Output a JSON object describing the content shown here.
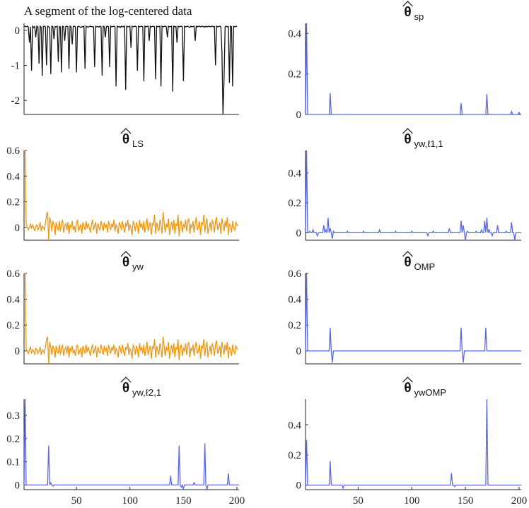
{
  "chart_data": [
    {
      "id": "data",
      "type": "line",
      "title_text": "A segment of the log-centered data",
      "color": "#111111",
      "xlim": [
        1,
        202
      ],
      "ylim": [
        -2.4,
        0.2
      ],
      "yticks": [
        0,
        -1,
        -2
      ],
      "ytick_labels": [
        "0",
        "-1",
        "-2"
      ],
      "xticks": [],
      "x_start": 1,
      "values": [
        0.12,
        0.12,
        0.1,
        0.12,
        0.1,
        -0.35,
        0.1,
        -1.15,
        0.12,
        0.08,
        0.11,
        -0.2,
        0.12,
        0.1,
        -0.95,
        0.12,
        0.09,
        -1.3,
        0.11,
        0.12,
        0.1,
        -1.0,
        0.12,
        0.1,
        0.08,
        -1.25,
        0.12,
        0.1,
        -0.25,
        0.11,
        0.1,
        0.12,
        -0.9,
        0.11,
        0.1,
        -1.2,
        0.12,
        0.1,
        -0.3,
        0.11,
        0.12,
        0.1,
        -1.1,
        0.12,
        0.1,
        -0.4,
        0.11,
        0.12,
        0.1,
        -1.2,
        0.1,
        0.12,
        0.1,
        0.08,
        0.11,
        0.1,
        0.12,
        -1.1,
        0.12,
        0.1,
        0.09,
        0.11,
        0.12,
        0.1,
        0.11,
        0.1,
        -1.05,
        0.12,
        0.1,
        0.11,
        0.09,
        0.12,
        0.1,
        -1.3,
        0.12,
        0.1,
        -0.2,
        0.11,
        0.12,
        0.1,
        -1.05,
        0.12,
        0.1,
        0.11,
        0.12,
        0.1,
        -1.6,
        0.12,
        0.1,
        0.11,
        0.08,
        0.12,
        0.1,
        0.11,
        0.12,
        -1.7,
        0.12,
        0.1,
        0.11,
        0.12,
        -0.5,
        0.12,
        0.1,
        0.11,
        0.12,
        0.1,
        -1.15,
        0.12,
        0.1,
        0.11,
        0.12,
        0.1,
        -1.45,
        0.12,
        0.1,
        0.11,
        0.12,
        -0.3,
        0.12,
        0.1,
        0.11,
        0.12,
        0.1,
        -1.4,
        0.12,
        0.1,
        0.11,
        0.12,
        -1.6,
        0.12,
        0.1,
        0.11,
        0.12,
        0.1,
        -0.2,
        0.12,
        0.1,
        0.11,
        0.12,
        -1.75,
        0.12,
        0.1,
        0.11,
        -0.35,
        0.12,
        0.1,
        0.11,
        0.12,
        0.1,
        -1.45,
        0.12,
        0.1,
        0.11,
        0.12,
        0.1,
        0.08,
        0.12,
        0.1,
        0.11,
        0.12,
        -0.3,
        0.12,
        0.1,
        0.11,
        0.12,
        0.1,
        0.11,
        0.12,
        0.1,
        0.09,
        0.12,
        0.1,
        0.11,
        0.12,
        0.1,
        0.11,
        0.12,
        0.1,
        0.11,
        -1.0,
        0.12,
        0.1,
        0.11,
        0.12,
        0.1,
        -0.6,
        -2.4,
        -1.4,
        0.1,
        0.12,
        0.1,
        0.11,
        -1.5,
        0.12,
        0.1,
        -1.6,
        0.12,
        0.1,
        0.11,
        0.12
      ]
    },
    {
      "id": "sp",
      "type": "line",
      "title_main": "θ",
      "title_sub": "sp",
      "color": "#5b67e0",
      "xlim": [
        1,
        202
      ],
      "ylim": [
        0,
        0.45
      ],
      "yticks": [
        0,
        0.2,
        0.4
      ],
      "ytick_labels": [
        "0",
        "0.2",
        "0.4"
      ],
      "xticks": [],
      "sparse": [
        [
          2,
          0.45
        ],
        [
          24,
          0.105
        ],
        [
          146,
          0.055
        ],
        [
          170,
          0.1
        ],
        [
          193,
          0.015
        ],
        [
          200,
          0.01
        ]
      ]
    },
    {
      "id": "ls",
      "type": "line",
      "title_main": "θ",
      "title_sub": "LS",
      "color": "#f0960f",
      "xlim": [
        1,
        202
      ],
      "ylim": [
        -0.1,
        0.6
      ],
      "yticks": [
        0,
        0.2,
        0.4,
        0.6
      ],
      "ytick_labels": [
        "0",
        "0.2",
        "0.4",
        "0.6"
      ],
      "xticks": [],
      "x_start": 1,
      "values": [
        0.6,
        0.6,
        0.02,
        0.01,
        -0.02,
        0.0,
        0.03,
        -0.01,
        0.02,
        0.0,
        -0.03,
        0.01,
        0.02,
        -0.02,
        0.0,
        0.04,
        -0.03,
        0.01,
        0.0,
        -0.02,
        0.03,
        0.1,
        0.12,
        -0.1,
        0.08,
        0.04,
        -0.03,
        0.05,
        0.02,
        -0.06,
        0.04,
        0.0,
        -0.02,
        0.05,
        -0.03,
        0.02,
        0.06,
        -0.04,
        0.01,
        0.03,
        -0.02,
        0.04,
        -0.05,
        0.02,
        0.0,
        0.05,
        -0.02,
        0.01,
        -0.04,
        0.03,
        0.06,
        -0.03,
        0.0,
        0.02,
        -0.05,
        0.04,
        0.01,
        -0.02,
        0.05,
        -0.01,
        0.03,
        0.0,
        -0.04,
        0.02,
        0.06,
        -0.02,
        0.01,
        0.04,
        -0.05,
        0.03,
        0.0,
        -0.02,
        0.05,
        0.01,
        -0.03,
        0.04,
        0.0,
        0.02,
        -0.04,
        0.05,
        0.01,
        -0.02,
        0.03,
        0.0,
        0.06,
        -0.03,
        0.02,
        0.0,
        -0.05,
        0.04,
        0.02,
        -0.02,
        0.05,
        0.0,
        -0.04,
        0.03,
        0.01,
        0.06,
        -0.03,
        0.02,
        0.0,
        -0.06,
        0.05,
        0.02,
        -0.03,
        0.04,
        0.01,
        -0.05,
        0.06,
        0.0,
        0.03,
        -0.02,
        0.05,
        -0.04,
        0.02,
        0.07,
        -0.03,
        0.01,
        0.04,
        -0.06,
        0.03,
        0.02,
        0.1,
        -0.05,
        0.04,
        0.0,
        -0.03,
        0.06,
        0.02,
        -0.05,
        0.12,
        0.04,
        -0.04,
        0.03,
        0.0,
        0.07,
        -0.06,
        0.02,
        0.04,
        -0.02,
        0.06,
        -0.05,
        0.03,
        0.01,
        0.1,
        -0.07,
        0.03,
        0.05,
        -0.04,
        0.02,
        0.0,
        0.06,
        -0.03,
        0.04,
        0.07,
        -0.05,
        0.02,
        0.0,
        0.05,
        -0.04,
        0.03,
        0.08,
        -0.02,
        0.0,
        0.05,
        -0.06,
        0.04,
        0.02,
        0.1,
        -0.04,
        0.03,
        0.07,
        -0.05,
        0.0,
        0.04,
        -0.03,
        0.06,
        0.02,
        -0.04,
        0.05,
        0.08,
        -0.02,
        0.0,
        0.04,
        -0.05,
        0.07,
        0.02,
        -0.03,
        0.05,
        0.0,
        0.08,
        -0.06,
        0.03,
        0.01,
        -0.04,
        0.05,
        0.0,
        -0.02,
        0.04,
        0.02,
        0.01
      ]
    },
    {
      "id": "yw_l11",
      "type": "line",
      "title_main": "θ",
      "title_sub": "yw,ℓ1,1",
      "color": "#5b67e0",
      "xlim": [
        1,
        202
      ],
      "ylim": [
        -0.05,
        0.55
      ],
      "yticks": [
        0,
        0.2,
        0.4
      ],
      "ytick_labels": [
        "0",
        "0.2",
        "0.4"
      ],
      "xticks": [],
      "sparse": [
        [
          2,
          0.55
        ],
        [
          5,
          0.01
        ],
        [
          8,
          0.02
        ],
        [
          12,
          -0.02
        ],
        [
          18,
          0.05
        ],
        [
          20,
          0.02
        ],
        [
          22,
          0.1
        ],
        [
          24,
          0.03
        ],
        [
          26,
          -0.04
        ],
        [
          27,
          0.01
        ],
        [
          30,
          0.0
        ],
        [
          40,
          0.01
        ],
        [
          55,
          0.01
        ],
        [
          70,
          0.02
        ],
        [
          85,
          0.01
        ],
        [
          100,
          0.01
        ],
        [
          115,
          -0.02
        ],
        [
          120,
          0.01
        ],
        [
          135,
          0.03
        ],
        [
          140,
          0.0
        ],
        [
          146,
          0.08
        ],
        [
          148,
          0.05
        ],
        [
          150,
          -0.05
        ],
        [
          152,
          0.01
        ],
        [
          160,
          0.01
        ],
        [
          165,
          0.02
        ],
        [
          168,
          0.08
        ],
        [
          170,
          0.1
        ],
        [
          172,
          0.02
        ],
        [
          175,
          -0.02
        ],
        [
          180,
          0.05
        ],
        [
          188,
          0.01
        ],
        [
          193,
          0.07
        ],
        [
          196,
          -0.05
        ],
        [
          198,
          0.0
        ]
      ]
    },
    {
      "id": "yw",
      "type": "line",
      "title_main": "θ",
      "title_sub": "yw",
      "color": "#f0960f",
      "xlim": [
        1,
        202
      ],
      "ylim": [
        -0.1,
        0.6
      ],
      "yticks": [
        0,
        0.2,
        0.4,
        0.6
      ],
      "ytick_labels": [
        "0",
        "0.2",
        "0.4",
        "0.6"
      ],
      "xticks": [],
      "x_start": 1,
      "values": [
        0.6,
        0.6,
        0.02,
        0.0,
        -0.02,
        0.01,
        0.03,
        -0.02,
        0.01,
        0.0,
        -0.03,
        0.02,
        0.01,
        -0.02,
        0.0,
        0.03,
        -0.03,
        0.01,
        0.0,
        -0.02,
        0.03,
        0.09,
        0.11,
        -0.1,
        0.07,
        0.03,
        -0.03,
        0.04,
        0.02,
        -0.05,
        0.04,
        0.0,
        -0.02,
        0.05,
        -0.03,
        0.02,
        0.05,
        -0.04,
        0.01,
        0.03,
        -0.02,
        0.04,
        -0.05,
        0.02,
        0.0,
        0.04,
        -0.02,
        0.01,
        -0.04,
        0.03,
        0.05,
        -0.03,
        0.0,
        0.02,
        -0.05,
        0.04,
        0.01,
        -0.02,
        0.05,
        -0.01,
        0.03,
        0.0,
        -0.04,
        0.02,
        0.05,
        -0.02,
        0.01,
        0.04,
        -0.05,
        0.03,
        0.0,
        -0.02,
        0.05,
        0.01,
        -0.03,
        0.04,
        0.0,
        0.02,
        -0.04,
        0.05,
        0.01,
        -0.02,
        0.03,
        0.0,
        0.05,
        -0.03,
        0.02,
        0.0,
        -0.05,
        0.04,
        0.02,
        -0.02,
        0.05,
        0.0,
        -0.04,
        0.03,
        0.01,
        0.06,
        -0.03,
        0.02,
        0.0,
        -0.06,
        0.05,
        0.02,
        -0.03,
        0.04,
        0.01,
        -0.05,
        0.06,
        0.0,
        0.03,
        -0.02,
        0.05,
        -0.04,
        0.02,
        0.07,
        -0.03,
        0.01,
        0.04,
        -0.06,
        0.03,
        0.02,
        0.09,
        -0.05,
        0.04,
        0.0,
        -0.03,
        0.06,
        0.02,
        -0.05,
        0.11,
        0.04,
        -0.04,
        0.03,
        0.0,
        0.07,
        -0.06,
        0.02,
        0.04,
        -0.02,
        0.06,
        -0.05,
        0.03,
        0.01,
        0.09,
        -0.07,
        0.03,
        0.05,
        -0.04,
        0.02,
        0.0,
        0.06,
        -0.03,
        0.04,
        0.07,
        -0.05,
        0.02,
        0.0,
        0.05,
        -0.04,
        0.03,
        0.07,
        -0.02,
        0.0,
        0.05,
        -0.06,
        0.04,
        0.02,
        0.09,
        -0.04,
        0.03,
        0.07,
        -0.05,
        0.0,
        0.04,
        -0.03,
        0.06,
        0.02,
        -0.04,
        0.05,
        0.08,
        -0.02,
        0.0,
        0.04,
        -0.05,
        0.07,
        0.02,
        -0.03,
        0.05,
        0.0,
        0.07,
        -0.06,
        0.03,
        0.01,
        -0.04,
        0.05,
        0.0,
        -0.02,
        0.04,
        0.02,
        0.01
      ]
    },
    {
      "id": "omp",
      "type": "line",
      "title_main": "θ",
      "title_sub": "OMP",
      "color": "#5b67e0",
      "xlim": [
        1,
        202
      ],
      "ylim": [
        -0.1,
        0.6
      ],
      "yticks": [
        0,
        0.2,
        0.4,
        0.6
      ],
      "ytick_labels": [
        "0",
        "0.2",
        "0.4",
        "0.6"
      ],
      "xticks": [],
      "sparse": [
        [
          2,
          0.6
        ],
        [
          24,
          0.18
        ],
        [
          26,
          -0.09
        ],
        [
          146,
          0.18
        ],
        [
          148,
          -0.09
        ],
        [
          169,
          0.18
        ]
      ]
    },
    {
      "id": "yw_l21",
      "type": "line",
      "title_main": "θ",
      "title_sub": "yw,ℓ2,1",
      "color": "#5b67e0",
      "xlim": [
        1,
        202
      ],
      "ylim": [
        -0.02,
        0.37
      ],
      "yticks": [
        0,
        0.1,
        0.2,
        0.3
      ],
      "ytick_labels": [
        "0",
        "0.1",
        "0.2",
        "0.3"
      ],
      "xticks": [
        50,
        100,
        150,
        200
      ],
      "xtick_labels": [
        "50",
        "100",
        "150",
        "200"
      ],
      "sparse": [
        [
          2,
          0.37
        ],
        [
          24,
          0.17
        ],
        [
          26,
          0.01
        ],
        [
          28,
          -0.005
        ],
        [
          138,
          0.04
        ],
        [
          146,
          0.17
        ],
        [
          148,
          -0.01
        ],
        [
          150,
          -0.015
        ],
        [
          160,
          0.01
        ],
        [
          170,
          0.18
        ],
        [
          172,
          -0.02
        ],
        [
          174,
          0.0
        ],
        [
          192,
          0.05
        ]
      ]
    },
    {
      "id": "ywomp",
      "type": "line",
      "title_main": "θ",
      "title_sub": "ywOMP",
      "color": "#5b67e0",
      "xlim": [
        1,
        202
      ],
      "ylim": [
        -0.03,
        0.57
      ],
      "yticks": [
        0,
        0.2,
        0.4
      ],
      "ytick_labels": [
        "0",
        "0.2",
        "0.4"
      ],
      "xticks": [
        50,
        100,
        150,
        200
      ],
      "xtick_labels": [
        "50",
        "100",
        "150",
        "200"
      ],
      "sparse": [
        [
          2,
          0.3
        ],
        [
          24,
          0.16
        ],
        [
          36,
          -0.02
        ],
        [
          137,
          0.08
        ],
        [
          140,
          -0.01
        ],
        [
          170,
          0.57
        ]
      ]
    }
  ]
}
